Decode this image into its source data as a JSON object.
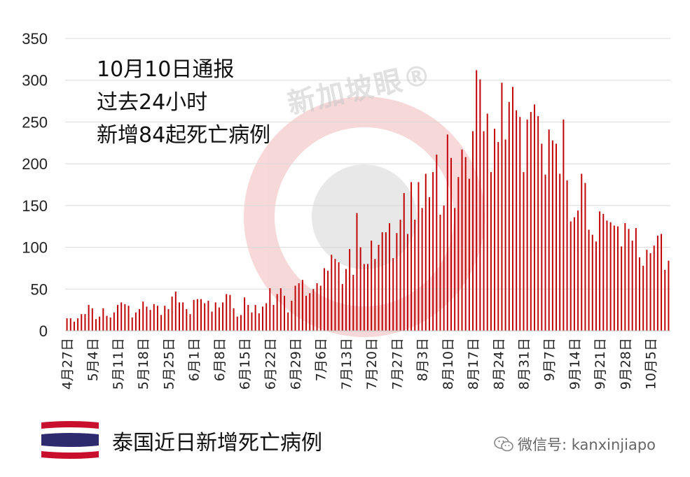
{
  "annotation": {
    "line1": "10月10日通报",
    "line2": "过去24小时",
    "line3": "新增84起死亡病例"
  },
  "legend": {
    "label": "泰国近日新增死亡病例"
  },
  "watermark": {
    "text": "新加坡眼®",
    "wechat_label": "微信号: kanxinjiapo"
  },
  "colors": {
    "bar": "#c00000",
    "grid": "#d9d9d9",
    "accent": "#e8303c"
  },
  "chart_data": {
    "type": "bar",
    "title": "",
    "xlabel": "",
    "ylabel": "",
    "ylim": [
      0,
      350
    ],
    "yticks": [
      0,
      50,
      100,
      150,
      200,
      250,
      300,
      350
    ],
    "grid": true,
    "start_date": "4月27日",
    "x_tick_labels": [
      "4月27日",
      "5月4日",
      "5月11日",
      "5月18日",
      "5月25日",
      "6月1日",
      "6月8日",
      "6月15日",
      "6月22日",
      "6月29日",
      "7月6日",
      "7月13日",
      "7月20日",
      "7月27日",
      "8月3日",
      "8月10日",
      "8月17日",
      "8月24日",
      "8月31日",
      "9月7日",
      "9月14日",
      "9月21日",
      "9月28日",
      "10月5日"
    ],
    "series": [
      {
        "name": "",
        "values": [
          15,
          15,
          11,
          15,
          20,
          20,
          31,
          27,
          14,
          17,
          27,
          18,
          16,
          22,
          31,
          34,
          32,
          30,
          16,
          22,
          26,
          35,
          29,
          25,
          32,
          30,
          19,
          30,
          26,
          41,
          47,
          34,
          34,
          26,
          20,
          37,
          38,
          38,
          33,
          36,
          23,
          34,
          28,
          34,
          44,
          43,
          27,
          17,
          19,
          40,
          31,
          22,
          31,
          21,
          29,
          33,
          51,
          31,
          44,
          51,
          42,
          22,
          36,
          54,
          57,
          61,
          42,
          45,
          50,
          57,
          54,
          75,
          72,
          91,
          86,
          82,
          56,
          74,
          98,
          67,
          141,
          100,
          80,
          80,
          108,
          86,
          103,
          118,
          118,
          129,
          87,
          117,
          133,
          165,
          116,
          178,
          133,
          178,
          147,
          188,
          160,
          190,
          211,
          139,
          150,
          235,
          207,
          147,
          184,
          217,
          208,
          182,
          239,
          312,
          301,
          239,
          260,
          190,
          242,
          226,
          297,
          229,
          274,
          292,
          264,
          256,
          190,
          253,
          262,
          271,
          257,
          224,
          187,
          241,
          228,
          224,
          188,
          253,
          180,
          131,
          136,
          144,
          188,
          177,
          121,
          115,
          107,
          143,
          140,
          132,
          130,
          126,
          125,
          101,
          129,
          122,
          108,
          123,
          88,
          78,
          97,
          93,
          102,
          114,
          116,
          73,
          84
        ]
      }
    ]
  }
}
